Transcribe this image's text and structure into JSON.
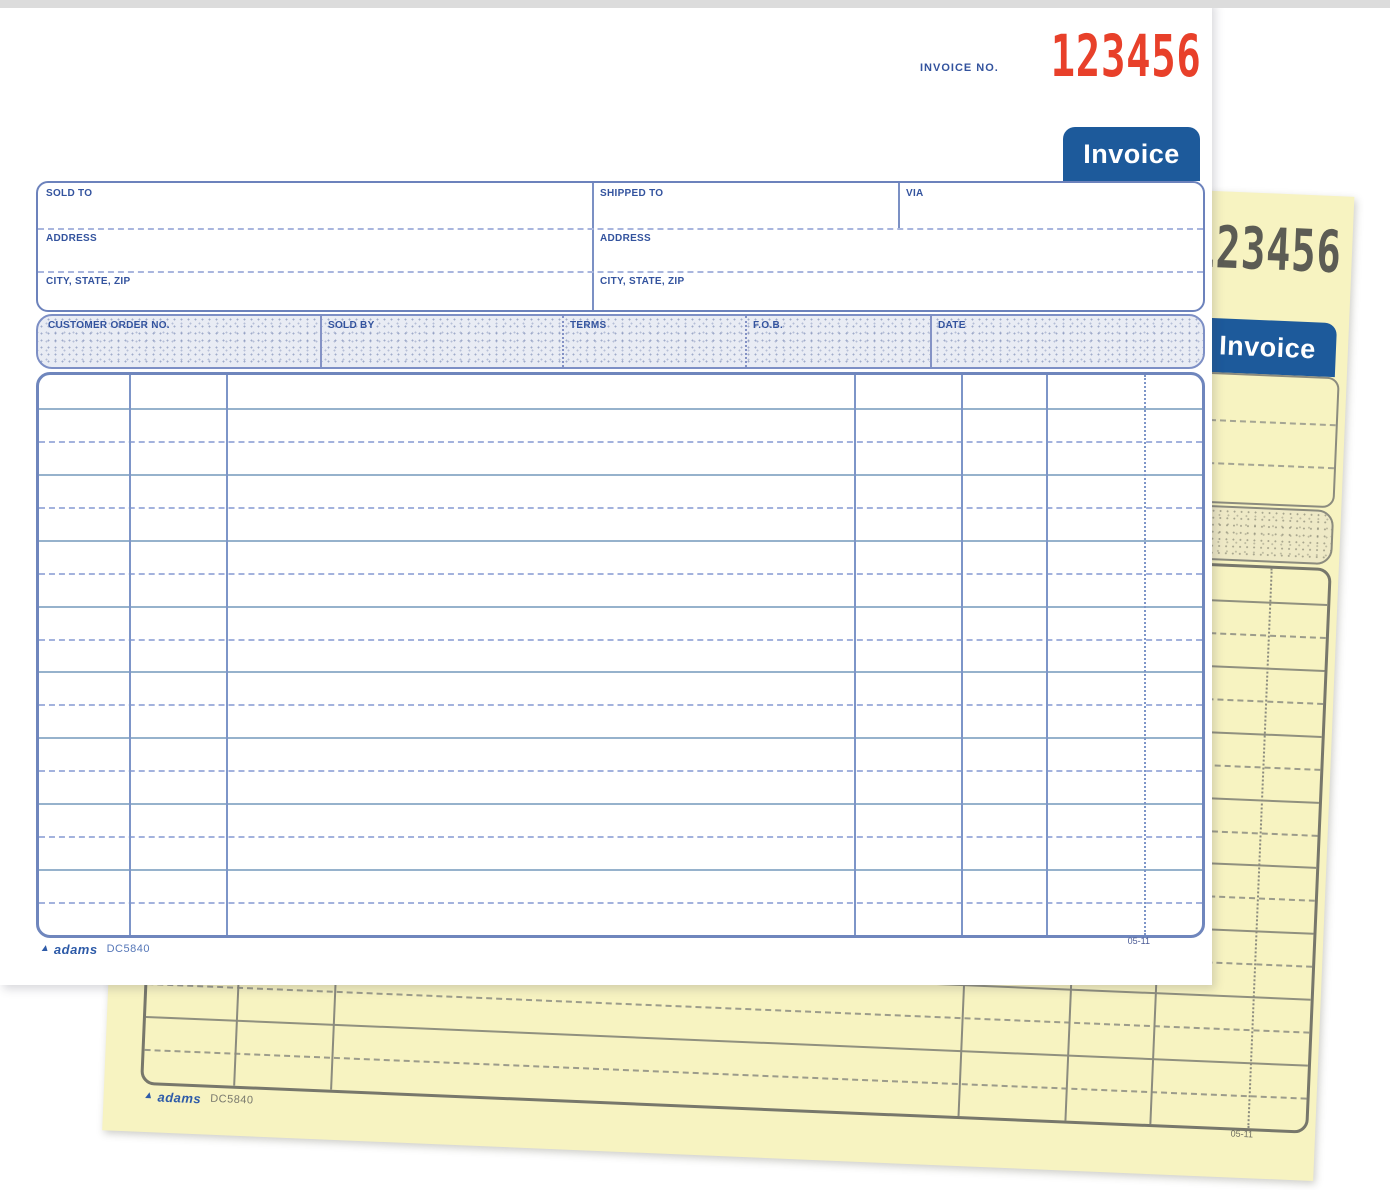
{
  "form": {
    "invoice_no_label": "INVOICE NO.",
    "invoice_number": "123456",
    "tab_label": "Invoice",
    "sold_to_label": "SOLD TO",
    "shipped_to_label": "SHIPPED TO",
    "via_label": "VIA",
    "address_label": "ADDRESS",
    "city_state_zip_label": "CITY, STATE, ZIP",
    "customer_order_no_label": "CUSTOMER ORDER NO.",
    "sold_by_label": "SOLD BY",
    "terms_label": "TERMS",
    "fob_label": "F.O.B.",
    "date_label": "DATE",
    "brand_name": "adams",
    "product_code": "DC5840",
    "revision_code": "05-11",
    "detail_rows": 17
  },
  "colors": {
    "number_red": "#e8402a",
    "tab_blue": "#1d5a9b",
    "form_ink_blue": "#33539e",
    "form_line_blue": "#7d95c8",
    "copy_paper_yellow": "#f7f3c1",
    "copy_ink_gray": "#74746a"
  }
}
